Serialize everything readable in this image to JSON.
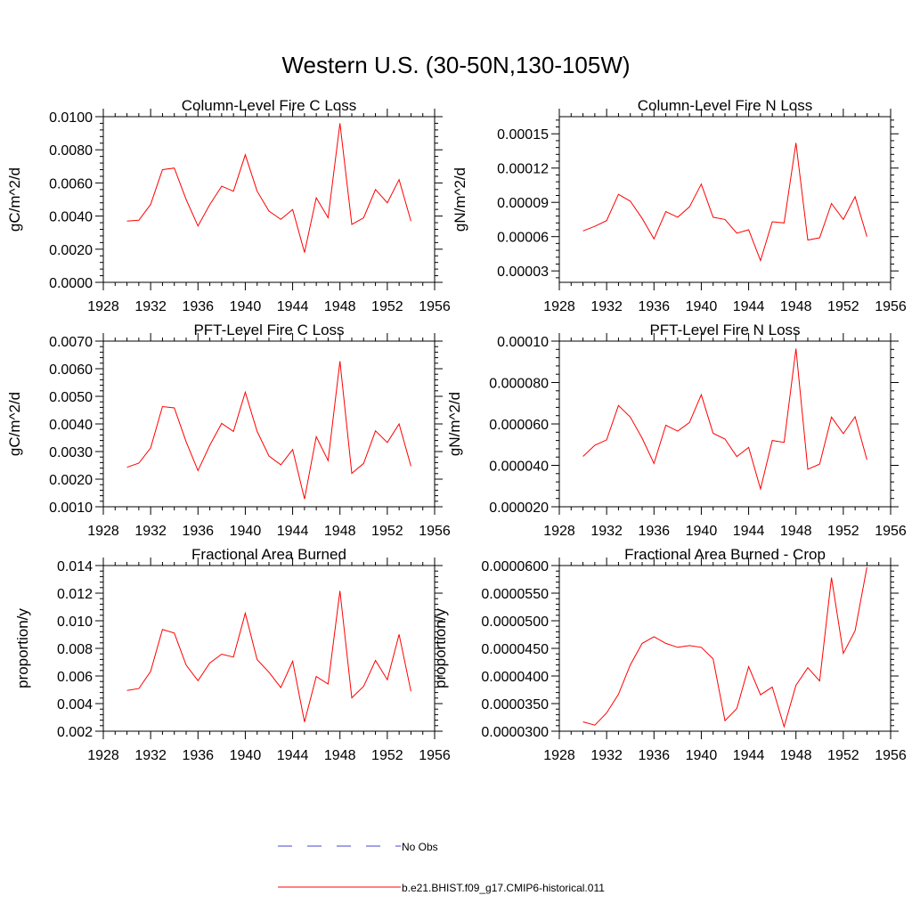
{
  "figure": {
    "title": "Western U.S. (30-50N,130-105W)",
    "series_color": "#ff0000",
    "obs_color": "#4444cc"
  },
  "legend": {
    "entries": [
      {
        "label": "No Obs",
        "style": "dashed",
        "color": "#4444cc"
      },
      {
        "label": "b.e21.BHIST.f09_g17.CMIP6-historical.011",
        "style": "solid",
        "color": "#ff0000"
      }
    ]
  },
  "chart_data": [
    {
      "type": "line",
      "title": "Column-Level Fire C Loss",
      "ylabel": "gC/m^2/d",
      "xlim": [
        1928,
        1956
      ],
      "ylim": [
        0.0,
        0.01
      ],
      "xticks": [
        1928,
        1932,
        1936,
        1940,
        1944,
        1948,
        1952,
        1956
      ],
      "yticks": [
        0.0,
        0.002,
        0.004,
        0.006,
        0.008,
        0.01
      ],
      "ytick_labels": [
        "0.0000",
        "0.0020",
        "0.0040",
        "0.0060",
        "0.0080",
        "0.0100"
      ],
      "series": [
        {
          "name": "b.e21.BHIST.f09_g17.CMIP6-historical.011",
          "x": [
            1930,
            1931,
            1932,
            1933,
            1934,
            1935,
            1936,
            1937,
            1938,
            1939,
            1940,
            1941,
            1942,
            1943,
            1944,
            1945,
            1946,
            1947,
            1948,
            1949,
            1950,
            1951,
            1952,
            1953,
            1954
          ],
          "values": [
            0.0037,
            0.00375,
            0.0047,
            0.0068,
            0.0069,
            0.005,
            0.0034,
            0.0047,
            0.0058,
            0.0055,
            0.0077,
            0.0055,
            0.0043,
            0.0038,
            0.0044,
            0.0018,
            0.0051,
            0.0039,
            0.0096,
            0.0035,
            0.0039,
            0.0056,
            0.0048,
            0.0062,
            0.0037
          ]
        }
      ]
    },
    {
      "type": "line",
      "title": "Column-Level Fire N Loss",
      "ylabel": "gN/m^2/d",
      "xlim": [
        1928,
        1956
      ],
      "ylim": [
        2e-05,
        0.000165
      ],
      "xticks": [
        1928,
        1932,
        1936,
        1940,
        1944,
        1948,
        1952,
        1956
      ],
      "yticks": [
        3e-05,
        6e-05,
        9e-05,
        0.00012,
        0.00015
      ],
      "ytick_labels": [
        "0.00003",
        "0.00006",
        "0.00009",
        "0.00012",
        "0.00015"
      ],
      "series": [
        {
          "name": "b.e21.BHIST.f09_g17.CMIP6-historical.011",
          "x": [
            1930,
            1931,
            1932,
            1933,
            1934,
            1935,
            1936,
            1937,
            1938,
            1939,
            1940,
            1941,
            1942,
            1943,
            1944,
            1945,
            1946,
            1947,
            1948,
            1949,
            1950,
            1951,
            1952,
            1953,
            1954
          ],
          "values": [
            6.5e-05,
            6.9e-05,
            7.4e-05,
            9.7e-05,
            9.1e-05,
            7.6e-05,
            5.8e-05,
            8.2e-05,
            7.7e-05,
            8.6e-05,
            0.000106,
            7.7e-05,
            7.5e-05,
            6.3e-05,
            6.6e-05,
            3.9e-05,
            7.3e-05,
            7.2e-05,
            0.000142,
            5.7e-05,
            5.9e-05,
            8.9e-05,
            7.5e-05,
            9.5e-05,
            6e-05
          ]
        }
      ]
    },
    {
      "type": "line",
      "title": "PFT-Level Fire C Loss",
      "ylabel": "gC/m^2/d",
      "xlim": [
        1928,
        1956
      ],
      "ylim": [
        0.001,
        0.007
      ],
      "xticks": [
        1928,
        1932,
        1936,
        1940,
        1944,
        1948,
        1952,
        1956
      ],
      "yticks": [
        0.001,
        0.002,
        0.003,
        0.004,
        0.005,
        0.006,
        0.007
      ],
      "ytick_labels": [
        "0.0010",
        "0.0020",
        "0.0030",
        "0.0040",
        "0.0050",
        "0.0060",
        "0.0070"
      ],
      "series": [
        {
          "name": "b.e21.BHIST.f09_g17.CMIP6-historical.011",
          "x": [
            1930,
            1931,
            1932,
            1933,
            1934,
            1935,
            1936,
            1937,
            1938,
            1939,
            1940,
            1941,
            1942,
            1943,
            1944,
            1945,
            1946,
            1947,
            1948,
            1949,
            1950,
            1951,
            1952,
            1953,
            1954
          ],
          "values": [
            0.00243,
            0.00258,
            0.00313,
            0.00463,
            0.00458,
            0.00335,
            0.00231,
            0.00323,
            0.00402,
            0.00373,
            0.00515,
            0.00373,
            0.00284,
            0.00252,
            0.00307,
            0.00128,
            0.00354,
            0.00267,
            0.00627,
            0.00221,
            0.00257,
            0.00375,
            0.00333,
            0.004,
            0.00247
          ]
        }
      ]
    },
    {
      "type": "line",
      "title": "PFT-Level Fire N Loss",
      "ylabel": "gN/m^2/d",
      "xlim": [
        1928,
        1956
      ],
      "ylim": [
        2e-05,
        0.0001
      ],
      "xticks": [
        1928,
        1932,
        1936,
        1940,
        1944,
        1948,
        1952,
        1956
      ],
      "yticks": [
        2e-05,
        4e-05,
        6e-05,
        8e-05,
        0.0001
      ],
      "ytick_labels": [
        "0.000020",
        "0.000040",
        "0.000060",
        "0.000080",
        "0.00010"
      ],
      "series": [
        {
          "name": "b.e21.BHIST.f09_g17.CMIP6-historical.011",
          "x": [
            1930,
            1931,
            1932,
            1933,
            1934,
            1935,
            1936,
            1937,
            1938,
            1939,
            1940,
            1941,
            1942,
            1943,
            1944,
            1945,
            1946,
            1947,
            1948,
            1949,
            1950,
            1951,
            1952,
            1953,
            1954
          ],
          "values": [
            4.43e-05,
            4.97e-05,
            5.23e-05,
            6.89e-05,
            6.33e-05,
            5.31e-05,
            4.09e-05,
            5.94e-05,
            5.65e-05,
            6.07e-05,
            7.41e-05,
            5.55e-05,
            5.27e-05,
            4.42e-05,
            4.87e-05,
            2.86e-05,
            5.2e-05,
            5.11e-05,
            9.64e-05,
            3.81e-05,
            4.06e-05,
            6.33e-05,
            5.53e-05,
            6.35e-05,
            4.27e-05
          ]
        }
      ]
    },
    {
      "type": "line",
      "title": "Fractional Area Burned",
      "ylabel": "proportion/y",
      "xlim": [
        1928,
        1956
      ],
      "ylim": [
        0.002,
        0.014
      ],
      "xticks": [
        1928,
        1932,
        1936,
        1940,
        1944,
        1948,
        1952,
        1956
      ],
      "yticks": [
        0.002,
        0.004,
        0.006,
        0.008,
        0.01,
        0.012,
        0.014
      ],
      "ytick_labels": [
        "0.002",
        "0.004",
        "0.006",
        "0.008",
        "0.010",
        "0.012",
        "0.014"
      ],
      "series": [
        {
          "name": "b.e21.BHIST.f09_g17.CMIP6-historical.011",
          "x": [
            1930,
            1931,
            1932,
            1933,
            1934,
            1935,
            1936,
            1937,
            1938,
            1939,
            1940,
            1941,
            1942,
            1943,
            1944,
            1945,
            1946,
            1947,
            1948,
            1949,
            1950,
            1951,
            1952,
            1953,
            1954
          ],
          "values": [
            0.00495,
            0.00509,
            0.00633,
            0.00937,
            0.00911,
            0.00679,
            0.00566,
            0.00694,
            0.00758,
            0.00737,
            0.01055,
            0.00719,
            0.00627,
            0.00516,
            0.00707,
            0.00267,
            0.00596,
            0.00542,
            0.01216,
            0.00442,
            0.00525,
            0.00712,
            0.00573,
            0.00901,
            0.00489
          ]
        }
      ]
    },
    {
      "type": "line",
      "title": "Fractional Area Burned - Crop",
      "ylabel": "proportion/y",
      "xlim": [
        1928,
        1956
      ],
      "ylim": [
        3e-05,
        6e-05
      ],
      "xticks": [
        1928,
        1932,
        1936,
        1940,
        1944,
        1948,
        1952,
        1956
      ],
      "yticks": [
        3e-05,
        3.5e-05,
        4e-05,
        4.5e-05,
        5e-05,
        5.5e-05,
        6e-05
      ],
      "ytick_labels": [
        "0.0000300",
        "0.0000350",
        "0.0000400",
        "0.0000450",
        "0.0000500",
        "0.0000550",
        "0.0000600"
      ],
      "series": [
        {
          "name": "b.e21.BHIST.f09_g17.CMIP6-historical.011",
          "x": [
            1930,
            1931,
            1932,
            1933,
            1934,
            1935,
            1936,
            1937,
            1938,
            1939,
            1940,
            1941,
            1942,
            1943,
            1944,
            1945,
            1946,
            1947,
            1948,
            1949,
            1950,
            1951,
            1952,
            1953,
            1954
          ],
          "values": [
            3.17e-05,
            3.11e-05,
            3.33e-05,
            3.67e-05,
            4.2e-05,
            4.59e-05,
            4.71e-05,
            4.59e-05,
            4.52e-05,
            4.55e-05,
            4.52e-05,
            4.31e-05,
            3.19e-05,
            3.41e-05,
            4.17e-05,
            3.66e-05,
            3.8e-05,
            3.08e-05,
            3.83e-05,
            4.15e-05,
            3.91e-05,
            5.78e-05,
            4.41e-05,
            4.82e-05,
            5.97e-05
          ]
        }
      ]
    }
  ]
}
